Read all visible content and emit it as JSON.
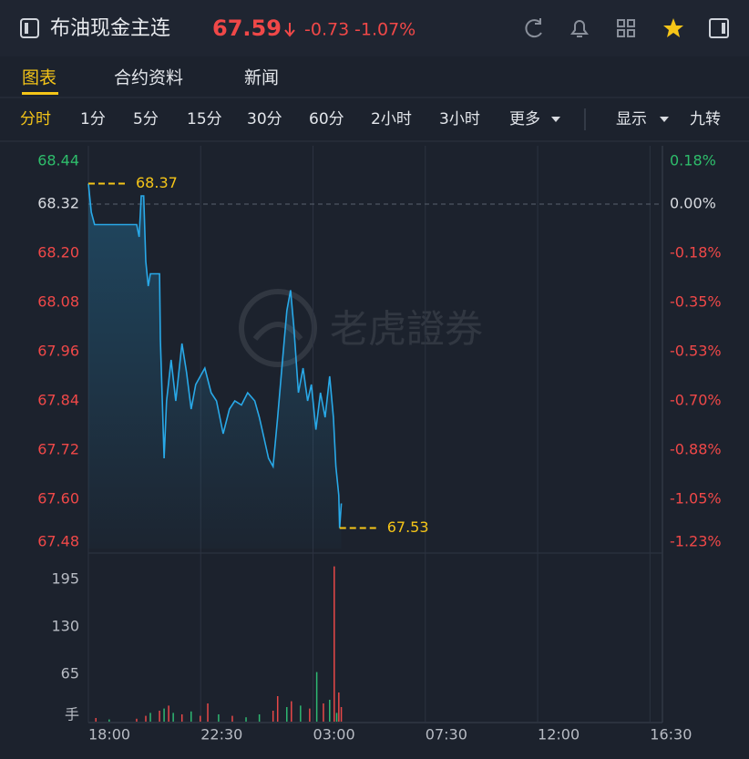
{
  "header": {
    "name": "布油现金主连",
    "price": "67.59",
    "change": "-0.73",
    "change_pct": "-1.07%"
  },
  "tabs": [
    "图表",
    "合约资料",
    "新闻"
  ],
  "periods": [
    "分时",
    "1分",
    "5分",
    "15分",
    "30分",
    "60分",
    "2小时",
    "3小时",
    "更多"
  ],
  "options": [
    "显示",
    "九转"
  ],
  "watermark": "老虎證券",
  "chart_data": [
    {
      "type": "line",
      "color": "#29a9e8",
      "x": [
        "18:00",
        "18:07",
        "18:15",
        "19:56",
        "20:02",
        "20:07",
        "20:13",
        "20:18",
        "20:24",
        "20:29",
        "20:51",
        "20:53",
        "21:02",
        "21:08",
        "21:19",
        "21:30",
        "21:45",
        "21:56",
        "22:07",
        "22:18",
        "22:40",
        "22:55",
        "23:08",
        "23:24",
        "23:39",
        "23:52",
        "00:08",
        "00:23",
        "00:40",
        "00:51",
        "01:02",
        "01:13",
        "01:24",
        "01:35",
        "01:46",
        "01:57",
        "02:06",
        "02:14",
        "02:25",
        "02:36",
        "02:47",
        "02:56",
        "03:07",
        "03:18",
        "03:29",
        "03:40",
        "03:49",
        "03:55",
        "04:02",
        "04:04",
        "04:08"
      ],
      "values": [
        68.37,
        68.3,
        68.27,
        68.27,
        68.24,
        68.34,
        68.34,
        68.18,
        68.12,
        68.15,
        68.15,
        67.99,
        67.7,
        67.84,
        67.94,
        67.84,
        67.98,
        67.91,
        67.82,
        67.88,
        67.92,
        67.86,
        67.84,
        67.76,
        67.82,
        67.84,
        67.83,
        67.86,
        67.84,
        67.8,
        67.75,
        67.7,
        67.68,
        67.8,
        67.93,
        68.06,
        68.11,
        68.02,
        67.86,
        67.92,
        67.84,
        67.88,
        67.77,
        67.86,
        67.8,
        67.9,
        67.8,
        67.68,
        67.61,
        67.53,
        67.59
      ],
      "high": 68.37,
      "low": 67.53,
      "xlim": [
        "18:00",
        "17:00"
      ],
      "ylim": [
        67.48,
        68.44
      ],
      "yticks": [
        68.44,
        68.32,
        {
          "value": 68.2,
          "label": "68.20"
        },
        68.08,
        67.96,
        67.84,
        67.72,
        {
          "value": 67.6,
          "label": "67.60"
        },
        67.48
      ],
      "y2lim": [
        -1.2295,
        0.1756
      ],
      "y2ticks": [
        {
          "value": 0.1756,
          "label": "0.18%"
        },
        {
          "value": 0,
          "label": "0.00%"
        },
        {
          "value": -0.1756,
          "label": "-0.18%"
        },
        {
          "value": -0.3513,
          "label": "-0.35%"
        },
        {
          "value": -0.5269,
          "label": "-0.53%"
        },
        {
          "value": -0.7026,
          "label": "-0.70%"
        },
        {
          "value": -0.8782,
          "label": "-0.88%"
        },
        {
          "value": -1.0539,
          "label": "-1.05%"
        },
        {
          "value": -1.2295,
          "label": "-1.23%"
        }
      ],
      "grid": true
    },
    {
      "type": "bar",
      "y_unit": "手",
      "x": [
        "18:18",
        "18:50",
        "19:56",
        "20:18",
        "20:29",
        "20:51",
        "21:02",
        "21:13",
        "21:24",
        "21:45",
        "22:07",
        "22:29",
        "22:47",
        "23:13",
        "23:46",
        "00:19",
        "00:51",
        "01:24",
        "01:35",
        "01:57",
        "02:08",
        "02:30",
        "02:52",
        "03:09",
        "03:25",
        "03:40",
        "03:51",
        "03:57",
        "04:02",
        "04:08"
      ],
      "values": [
        5,
        3,
        4,
        8,
        12,
        15,
        18,
        22,
        12,
        10,
        14,
        8,
        25,
        10,
        8,
        6,
        10,
        15,
        35,
        20,
        28,
        22,
        18,
        68,
        25,
        30,
        213,
        12,
        40,
        20
      ],
      "colors": [
        "#e84848",
        "#2eb872",
        "#e84848",
        "#e84848",
        "#2eb872",
        "#e84848",
        "#2eb872",
        "#e84848",
        "#2eb872",
        "#e84848",
        "#2eb872",
        "#e84848",
        "#e84848",
        "#2eb872",
        "#e84848",
        "#2eb872",
        "#2eb872",
        "#e84848",
        "#e84848",
        "#2eb872",
        "#e84848",
        "#2eb872",
        "#e84848",
        "#2eb872",
        "#e84848",
        "#2eb872",
        "#e84848",
        "#2eb872",
        "#e84848",
        "#e84848"
      ],
      "xlim": [
        "18:00",
        "17:00"
      ],
      "ylim": [
        0,
        225
      ],
      "yticks": [
        65,
        130,
        195
      ],
      "xticks": [
        "18:00",
        "22:30",
        "03:00",
        "07:30",
        "12:00",
        "16:30"
      ],
      "grid": true
    }
  ]
}
